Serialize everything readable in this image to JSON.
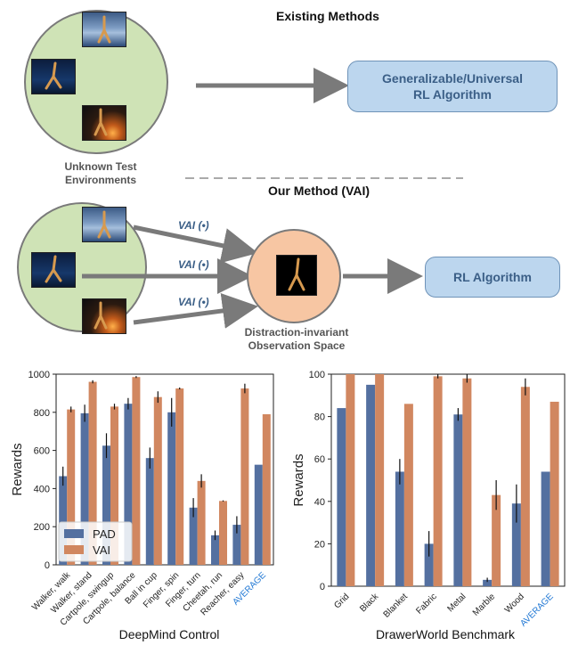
{
  "top": {
    "existing_methods": "Existing Methods",
    "generalizable_box": [
      "Generalizable/Universal",
      "RL Algorithm"
    ],
    "unknown_caption": [
      "Unknown Test",
      "Environments"
    ],
    "our_method": "Our Method (VAI)",
    "vai_labels": [
      "VAI (•)",
      "VAI (•)",
      "VAI (•)"
    ],
    "rl_box": "RL Algorithm",
    "invariant_caption": [
      "Distraction-invariant",
      "Observation Space"
    ]
  },
  "colors": {
    "pad": "#5470a0",
    "vai": "#d18760",
    "circle_green": "#cfe3b6",
    "circle_orange": "#f7c6a3",
    "box_blue": "#bcd6ee",
    "average_label": "#1f77d4"
  },
  "chart_data": [
    {
      "type": "bar",
      "title": "DeepMind Control",
      "ylabel": "Rewards",
      "ylim": [
        0,
        1000
      ],
      "yticks": [
        0,
        200,
        400,
        600,
        800,
        1000
      ],
      "categories": [
        "Walker, walk",
        "Walker, stand",
        "Cartpole, swingup",
        "Cartpole, balance",
        "Ball in cup",
        "Finger, spin",
        "Finger, turn",
        "Cheetah, run",
        "Reacher, easy",
        "AVERAGE"
      ],
      "series": [
        {
          "name": "PAD",
          "values": [
            465,
            795,
            625,
            845,
            560,
            800,
            300,
            155,
            210,
            525
          ],
          "errors": [
            50,
            45,
            65,
            30,
            55,
            75,
            50,
            25,
            45,
            0
          ]
        },
        {
          "name": "VAI",
          "values": [
            815,
            960,
            830,
            985,
            880,
            925,
            440,
            335,
            925,
            790
          ],
          "errors": [
            15,
            8,
            15,
            5,
            30,
            5,
            35,
            3,
            25,
            0
          ]
        }
      ],
      "legend": "bottom-left"
    },
    {
      "type": "bar",
      "title": "DrawerWorld Benchmark",
      "ylabel": "Rewards",
      "ylim": [
        0,
        100
      ],
      "yticks": [
        0,
        20,
        40,
        60,
        80,
        100
      ],
      "categories": [
        "Grid",
        "Black",
        "Blanket",
        "Fabric",
        "Metal",
        "Marble",
        "Wood",
        "AVERAGE"
      ],
      "series": [
        {
          "name": "PAD",
          "values": [
            84,
            95,
            54,
            20,
            81,
            3,
            39,
            54
          ],
          "errors": [
            0,
            0,
            6,
            6,
            3,
            1,
            9,
            0
          ]
        },
        {
          "name": "VAI",
          "values": [
            100,
            100,
            86,
            99,
            98,
            43,
            94,
            87
          ],
          "errors": [
            0,
            0,
            0,
            1,
            2,
            7,
            4,
            0
          ]
        }
      ]
    }
  ]
}
